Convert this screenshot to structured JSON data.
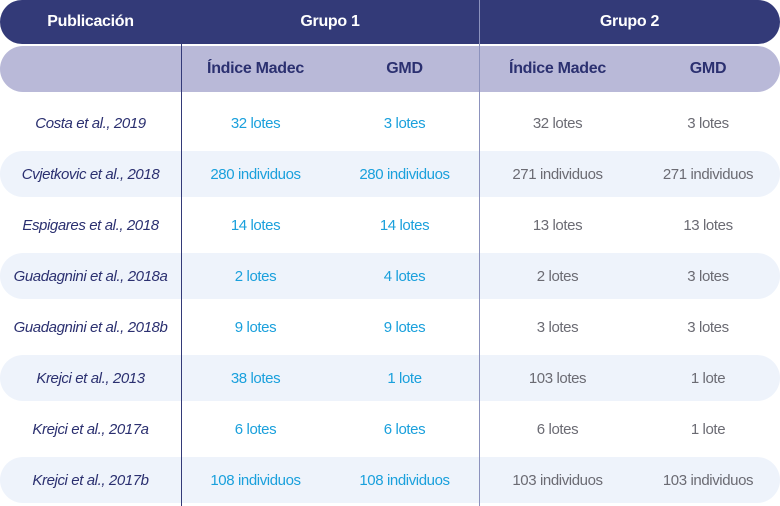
{
  "header": {
    "publication": "Publicación",
    "group1": "Grupo 1",
    "group2": "Grupo 2"
  },
  "subheader": {
    "g1_col1": "Índice Madec",
    "g1_col2": "GMD",
    "g2_col1": "Índice Madec",
    "g2_col2": "GMD"
  },
  "rows": [
    {
      "publication": "Costa et al., 2019",
      "g1_madec": "32 lotes",
      "g1_gmd": "3 lotes",
      "g2_madec": "32 lotes",
      "g2_gmd": "3 lotes"
    },
    {
      "publication": "Cvjetkovic et al., 2018",
      "g1_madec": "280 individuos",
      "g1_gmd": "280 individuos",
      "g2_madec": "271 individuos",
      "g2_gmd": "271 individuos"
    },
    {
      "publication": "Espigares et al., 2018",
      "g1_madec": "14 lotes",
      "g1_gmd": "14 lotes",
      "g2_madec": "13 lotes",
      "g2_gmd": "13 lotes"
    },
    {
      "publication": "Guadagnini et al., 2018a",
      "g1_madec": "2 lotes",
      "g1_gmd": "4 lotes",
      "g2_madec": "2 lotes",
      "g2_gmd": "3 lotes"
    },
    {
      "publication": "Guadagnini et al., 2018b",
      "g1_madec": "9 lotes",
      "g1_gmd": "9 lotes",
      "g2_madec": "3 lotes",
      "g2_gmd": "3 lotes"
    },
    {
      "publication": "Krejci et al., 2013",
      "g1_madec": "38 lotes",
      "g1_gmd": "1 lote",
      "g2_madec": "103 lotes",
      "g2_gmd": "1 lote"
    },
    {
      "publication": "Krejci et al., 2017a",
      "g1_madec": "6 lotes",
      "g1_gmd": "6 lotes",
      "g2_madec": "6 lotes",
      "g2_gmd": "1 lote"
    },
    {
      "publication": "Krejci et al., 2017b",
      "g1_madec": "108 individuos",
      "g1_gmd": "108 individuos",
      "g2_madec": "103 individuos",
      "g2_gmd": "103 individuos"
    }
  ]
}
